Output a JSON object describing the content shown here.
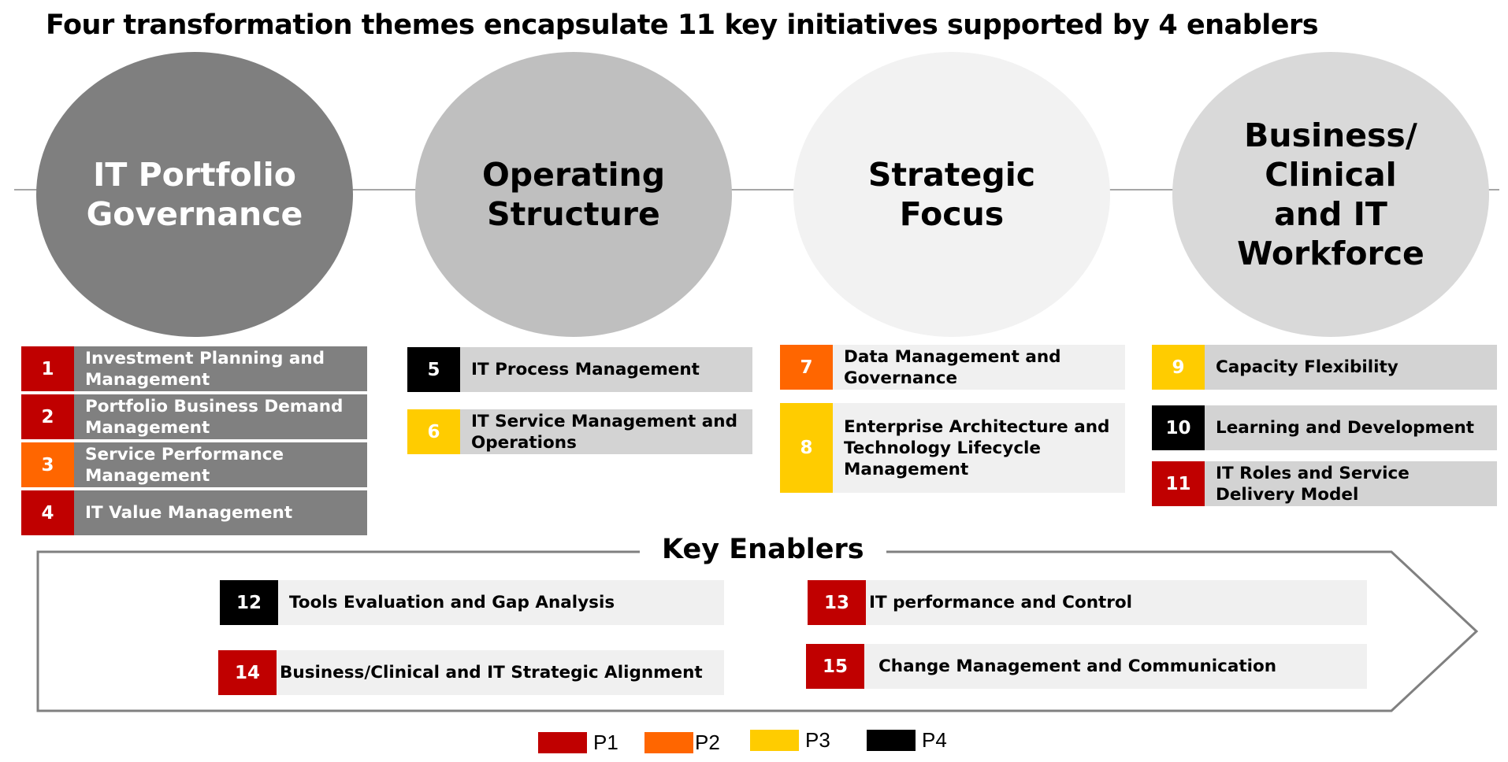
{
  "title": "Four transformation themes encapsulate 11 key initiatives supported by 4 enablers",
  "colors": {
    "P1": "#c00000",
    "P2": "#ff6600",
    "P3": "#ffcc00",
    "P4": "#000000"
  },
  "themes": [
    {
      "lines": [
        "IT Portfolio",
        "Governance"
      ],
      "fill": "#7f7f7f",
      "text_color": "#ffffff"
    },
    {
      "lines": [
        "Operating",
        "Structure"
      ],
      "fill": "#bfbfbf",
      "text_color": "#000000"
    },
    {
      "lines": [
        "Strategic",
        "Focus"
      ],
      "fill": "#f2f2f2",
      "text_color": "#000000"
    },
    {
      "lines": [
        "Business/",
        "Clinical",
        "and IT",
        "Workforce"
      ],
      "fill": "#d9d9d9",
      "text_color": "#000000"
    }
  ],
  "initiatives": [
    {
      "num": "1",
      "label": "Investment Planning and Management",
      "priority": "P1"
    },
    {
      "num": "2",
      "label": "Portfolio Business Demand Management",
      "priority": "P1"
    },
    {
      "num": "3",
      "label": "Service Performance Management",
      "priority": "P2"
    },
    {
      "num": "4",
      "label": "IT Value Management",
      "priority": "P1"
    },
    {
      "num": "5",
      "label": "IT Process Management",
      "priority": "P4"
    },
    {
      "num": "6",
      "label": "IT Service Management and Operations",
      "priority": "P3"
    },
    {
      "num": "7",
      "label": "Data Management and Governance",
      "priority": "P2"
    },
    {
      "num": "8",
      "label": "Enterprise Architecture and Technology Lifecycle Management",
      "priority": "P3"
    },
    {
      "num": "9",
      "label": "Capacity Flexibility",
      "priority": "P3"
    },
    {
      "num": "10",
      "label": "Learning and Development",
      "priority": "P4"
    },
    {
      "num": "11",
      "label": "IT Roles and Service Delivery Model",
      "priority": "P1"
    }
  ],
  "enablers": {
    "title": "Key Enablers",
    "items": [
      {
        "num": "12",
        "label": "Tools Evaluation and Gap Analysis",
        "priority": "P4"
      },
      {
        "num": "13",
        "label": "IT performance and Control",
        "priority": "P1"
      },
      {
        "num": "14",
        "label": "Business/Clinical and IT Strategic Alignment",
        "priority": "P1"
      },
      {
        "num": "15",
        "label": "Change Management and Communication",
        "priority": "P1"
      }
    ]
  },
  "legend": [
    {
      "label": "P1",
      "color": "#c00000"
    },
    {
      "label": "P2",
      "color": "#ff6600"
    },
    {
      "label": "P3",
      "color": "#ffcc00"
    },
    {
      "label": "P4",
      "color": "#000000"
    }
  ]
}
